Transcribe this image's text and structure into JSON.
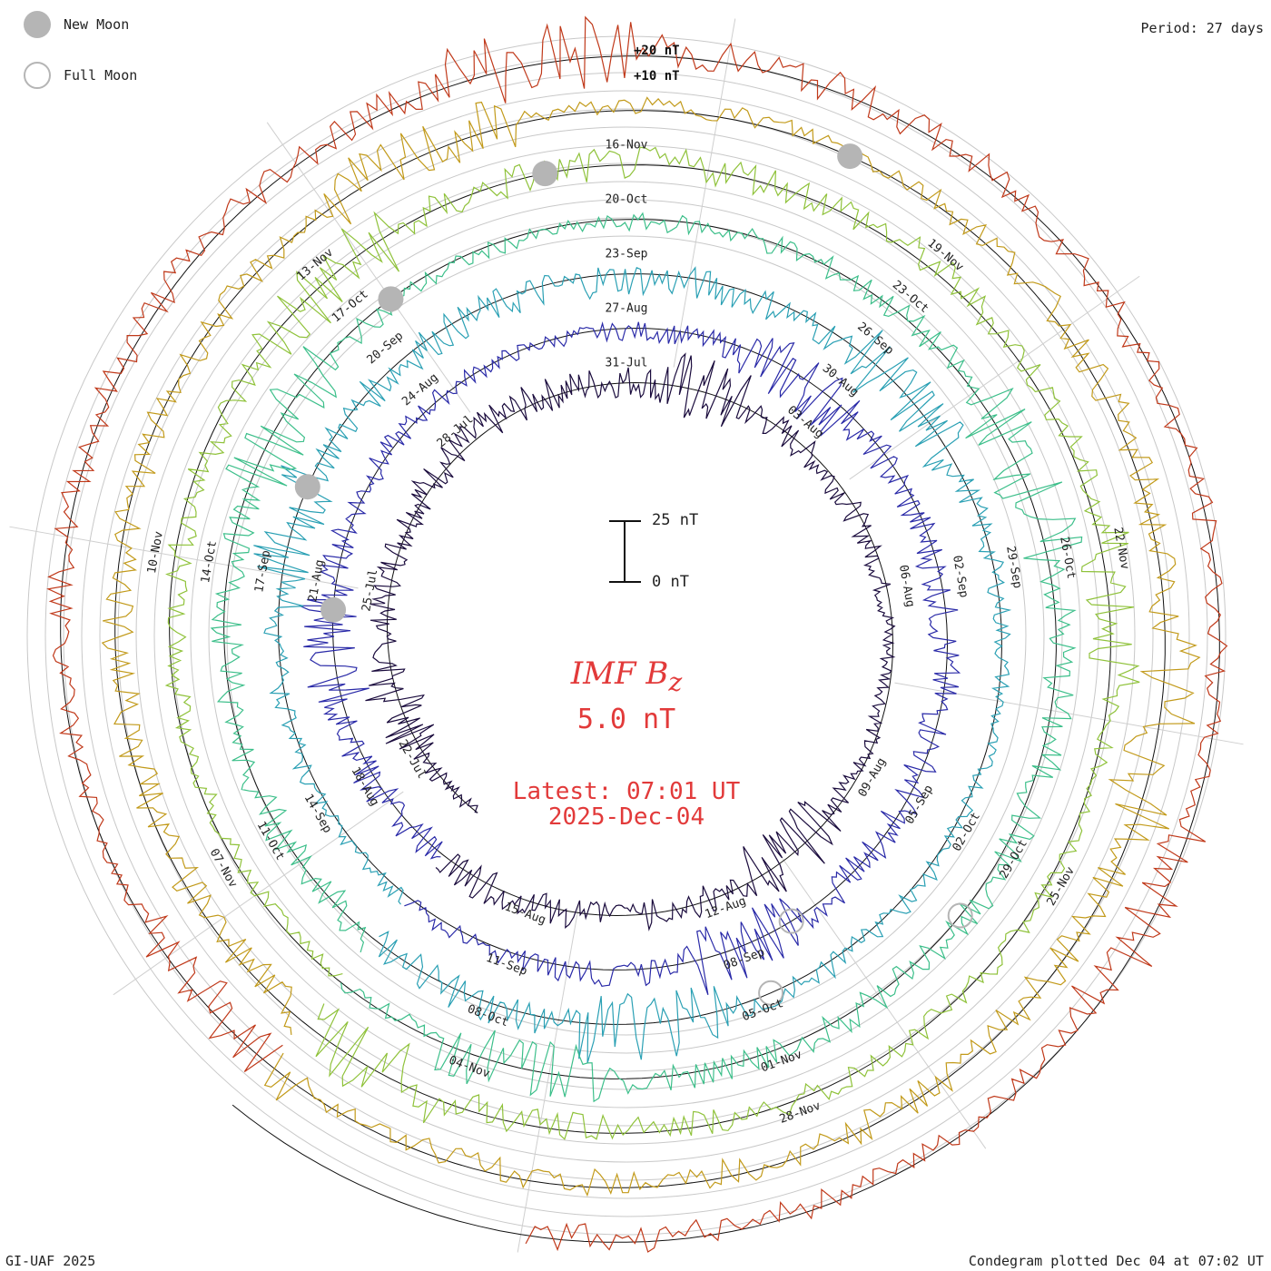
{
  "legend": {
    "new_moon": "New Moon",
    "full_moon": "Full Moon"
  },
  "period": "Period: 27 days",
  "footer_left": "GI-UAF 2025",
  "footer_right": "Condegram plotted Dec 04 at 07:02 UT",
  "center": {
    "title": "IMF B",
    "subscript": "z",
    "value": "5.0 nT",
    "latest_line1": "Latest: 07:01 UT",
    "latest_line2": "2025-Dec-04"
  },
  "scale_bar": {
    "top_label": "25 nT",
    "bottom_label": "0 nT"
  },
  "ring_labels": {
    "plus20": "+20 nT",
    "plus10": "+10 nT"
  },
  "colors": {
    "rings": [
      "#1a0b3d",
      "#2a2aa8",
      "#2aa0b4",
      "#3cbf8a",
      "#8fc23a",
      "#c29a1a",
      "#c0391a"
    ],
    "moon": "#b5b5b5",
    "center_text": "#e23a3a"
  },
  "chart_data": {
    "type": "line",
    "layout": "condegram spiral (polar time series, 27-day period)",
    "period_days": 27,
    "units": "nT",
    "series_name": "IMF Bz",
    "date_labels": [
      "22-Jul",
      "25-Jul",
      "28-Jul",
      "31-Jul",
      "03-Aug",
      "06-Aug",
      "09-Aug",
      "12-Aug",
      "15-Aug",
      "18-Aug",
      "21-Aug",
      "24-Aug",
      "27-Aug",
      "30-Aug",
      "02-Sep",
      "05-Sep",
      "08-Sep",
      "11-Sep",
      "14-Sep",
      "17-Sep",
      "20-Sep",
      "23-Sep",
      "26-Sep",
      "29-Sep",
      "02-Oct",
      "05-Oct",
      "08-Oct",
      "11-Oct",
      "14-Oct",
      "17-Oct",
      "20-Oct",
      "23-Oct",
      "26-Oct",
      "29-Oct",
      "01-Nov",
      "04-Nov",
      "07-Nov",
      "10-Nov",
      "13-Nov",
      "16-Nov",
      "19-Nov",
      "22-Nov",
      "25-Nov",
      "28-Nov"
    ],
    "label_angles_deg": [
      -5,
      40,
      85,
      130,
      175,
      220,
      265,
      310,
      355,
      40,
      85,
      130,
      175,
      220,
      265,
      310,
      355,
      40,
      85,
      130,
      175,
      220,
      265,
      310,
      355,
      40,
      85,
      130,
      175,
      220,
      265,
      310,
      355,
      40,
      85,
      130,
      175,
      220,
      265,
      310,
      355,
      40,
      85,
      130
    ],
    "start_angle_deg": -140,
    "ylim": [
      -25,
      25
    ],
    "scale_bar_nT": 25,
    "ring_annotations": [
      "+20 nT",
      "+10 nT"
    ],
    "new_moon_angles_deg": [
      55,
      75,
      105,
      130,
      165
    ],
    "full_moon_angles_deg": [
      -70,
      -62,
      270
    ],
    "latest_time": "07:01 UT",
    "latest_date": "2025-Dec-04",
    "latest_value_nT": 5.0,
    "grid": true
  }
}
